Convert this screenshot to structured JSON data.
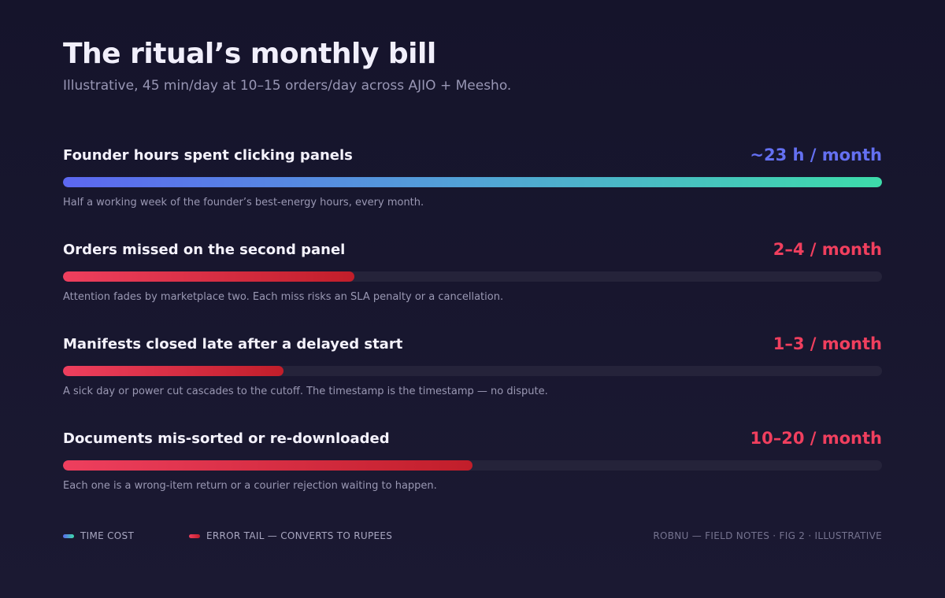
{
  "header": {
    "title": "The ritual’s monthly bill",
    "subtitle": "Illustrative, 45 min/day at 10–15 orders/day across AJIO + Meesho."
  },
  "colors": {
    "time_value": "#6470f2",
    "error_value": "#f03f5e",
    "time_gradient": [
      "#5c67f0",
      "#3ddcaa"
    ],
    "error_gradient": [
      "#ee3f5e",
      "#c11e2a"
    ],
    "track": "#25233a",
    "background": "#15142b"
  },
  "chart_data": {
    "type": "bar",
    "orientation": "horizontal",
    "title": "The ritual’s monthly bill",
    "subtitle": "Illustrative, 45 min/day at 10–15 orders/day across AJIO + Meesho.",
    "rows": [
      {
        "label": "Founder hours spent clicking panels",
        "value_label": "~23 h / month",
        "fill_fraction": 1.0,
        "kind": "time",
        "note": "Half a working week of the founder’s best-energy hours, every month."
      },
      {
        "label": "Orders missed on the second panel",
        "value_label": "2–4 / month",
        "fill_fraction": 0.356,
        "kind": "error",
        "note": "Attention fades by marketplace two. Each miss risks an SLA penalty or a cancellation."
      },
      {
        "label": "Manifests closed late after a delayed start",
        "value_label": "1–3 / month",
        "fill_fraction": 0.269,
        "kind": "error",
        "note": "A sick day or power cut cascades to the cutoff. The timestamp is the timestamp — no dispute."
      },
      {
        "label": "Documents mis-sorted or re-downloaded",
        "value_label": "10–20 / month",
        "fill_fraction": 0.5,
        "kind": "error",
        "note": "Each one is a wrong-item return or a courier rejection waiting to happen."
      }
    ],
    "legend": [
      {
        "kind": "time",
        "label": "TIME COST"
      },
      {
        "kind": "error",
        "label": "ERROR TAIL — CONVERTS TO RUPEES"
      }
    ],
    "legend_placement": "bottom-left",
    "grid": false
  },
  "footer": {
    "credit": "ROBNU — FIELD NOTES · FIG 2 · ILLUSTRATIVE"
  }
}
